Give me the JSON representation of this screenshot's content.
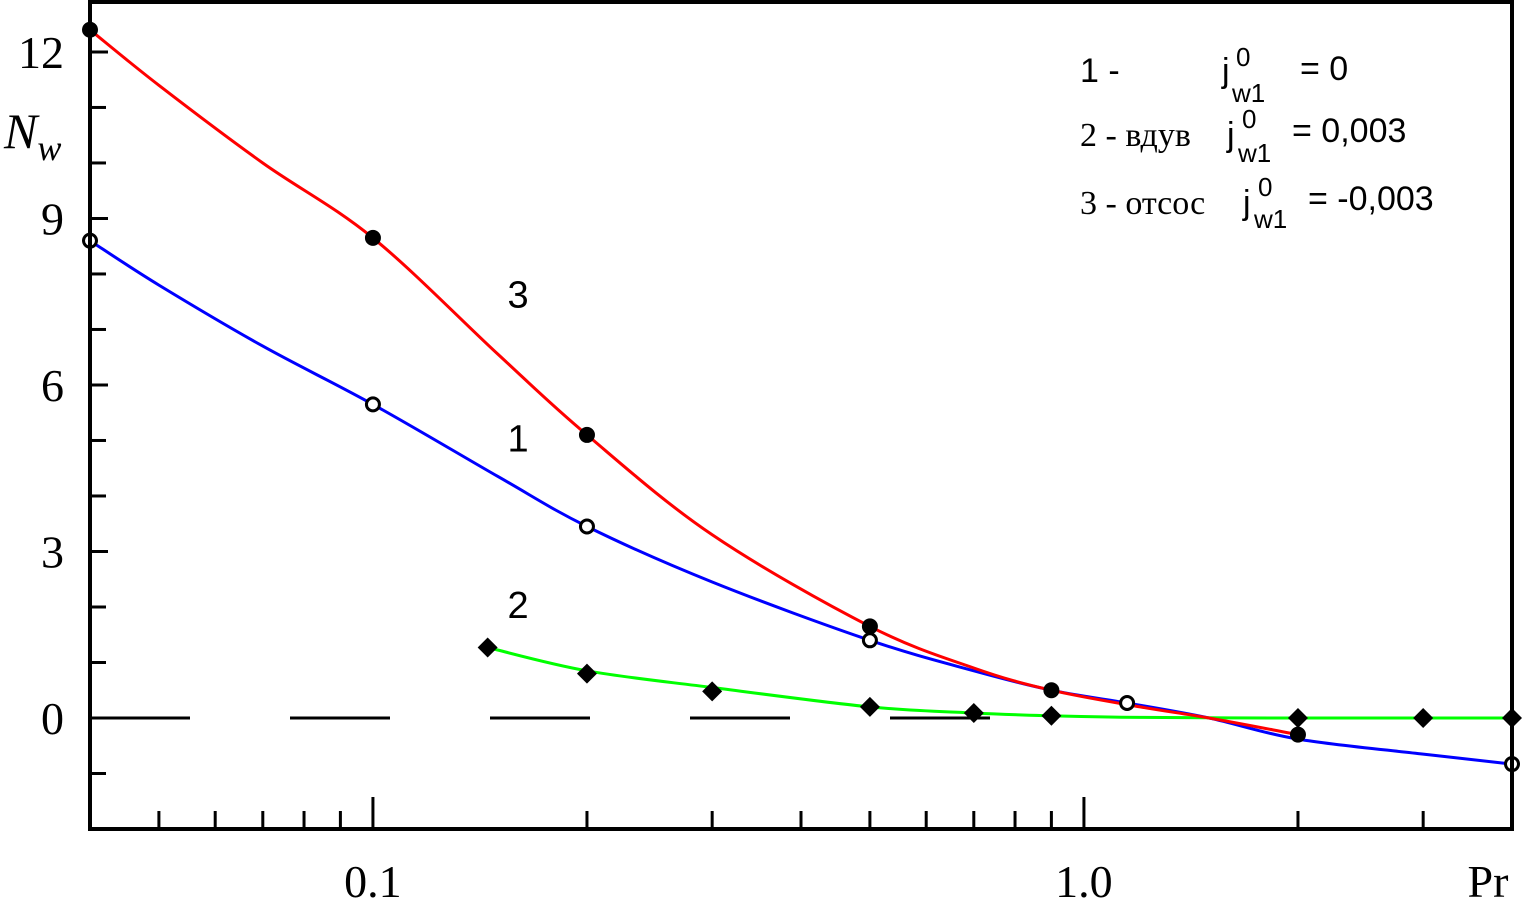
{
  "chart_data": {
    "type": "line",
    "xscale": "log",
    "xlim": [
      0.04,
      4.0
    ],
    "ylim": [
      -2.0,
      12.9
    ],
    "x_tick_labels": [
      "0.1",
      "1.0"
    ],
    "x_tick_values": [
      0.1,
      1.0
    ],
    "x_minor_ticks": [
      0.05,
      0.06,
      0.07,
      0.08,
      0.09,
      0.2,
      0.3,
      0.4,
      0.5,
      0.6,
      0.7,
      0.8,
      0.9,
      2.0,
      3.0,
      4.0
    ],
    "y_tick_labels": [
      "0",
      "3",
      "6",
      "9",
      "12"
    ],
    "y_tick_values": [
      0,
      3,
      6,
      9,
      12
    ],
    "y_minor_ticks": [
      -1,
      1,
      2,
      4,
      5,
      7,
      8,
      10,
      11
    ],
    "xlabel": "Pr",
    "ylabel": {
      "main": "N",
      "sub": "w"
    },
    "zero_line": {
      "y": 0,
      "style": "dashed",
      "x_range": [
        0.04,
        0.9
      ]
    },
    "series": [
      {
        "id": "1",
        "color": "#0000ff",
        "marker": "circle-open",
        "x": [
          0.04,
          0.1,
          0.2,
          0.5,
          1.15,
          4.0
        ],
        "y": [
          8.6,
          5.65,
          3.45,
          1.4,
          0.27,
          -0.83
        ],
        "curve_x": [
          0.04,
          0.05,
          0.07,
          0.1,
          0.15,
          0.2,
          0.3,
          0.5,
          0.7,
          0.9,
          1.15,
          1.5,
          2.0,
          3.0,
          4.0
        ],
        "curve_y": [
          8.6,
          7.8,
          6.7,
          5.65,
          4.35,
          3.45,
          2.45,
          1.4,
          0.85,
          0.5,
          0.27,
          0.0,
          -0.38,
          -0.65,
          -0.83
        ]
      },
      {
        "id": "2",
        "color": "#00ff00",
        "marker": "diamond-filled",
        "x": [
          0.145,
          0.2,
          0.3,
          0.5,
          0.7,
          0.9,
          2.0,
          3.0,
          4.0
        ],
        "y": [
          1.27,
          0.8,
          0.48,
          0.2,
          0.09,
          0.04,
          0.0,
          0.0,
          0.0
        ],
        "curve_x": [
          0.145,
          0.2,
          0.3,
          0.5,
          0.7,
          0.9,
          1.2,
          2.0,
          3.0,
          4.0
        ],
        "curve_y": [
          1.27,
          0.85,
          0.55,
          0.2,
          0.09,
          0.04,
          0.01,
          0.0,
          0.0,
          0.0
        ]
      },
      {
        "id": "3",
        "color": "#ff0000",
        "marker": "circle-filled",
        "x": [
          0.04,
          0.1,
          0.2,
          0.5,
          0.9,
          2.0
        ],
        "y": [
          12.4,
          8.65,
          5.1,
          1.65,
          0.5,
          -0.3
        ],
        "curve_x": [
          0.04,
          0.05,
          0.07,
          0.1,
          0.15,
          0.2,
          0.3,
          0.5,
          0.7,
          0.9,
          1.2,
          1.5,
          2.0
        ],
        "curve_y": [
          12.4,
          11.4,
          10.0,
          8.65,
          6.55,
          5.1,
          3.3,
          1.65,
          0.9,
          0.5,
          0.2,
          0.0,
          -0.3
        ]
      }
    ],
    "curve_labels": [
      {
        "text": "3",
        "series": "3",
        "x": 0.16,
        "y": 7.4
      },
      {
        "text": "1",
        "series": "1",
        "x": 0.16,
        "y": 4.8
      },
      {
        "text": "2",
        "series": "2",
        "x": 0.16,
        "y": 1.8
      }
    ],
    "legend": {
      "placement": "top-right",
      "entries": [
        {
          "prefix": "1 -",
          "prefix_font": "sans",
          "symbol": "j",
          "sup": "0",
          "sub": "w1",
          "value": "= 0"
        },
        {
          "prefix": "2 - вдув",
          "prefix_font": "serif",
          "symbol": "j",
          "sup": "0",
          "sub": "w1",
          "value": "= 0,003"
        },
        {
          "prefix": "3 - отсос",
          "prefix_font": "serif",
          "symbol": "j",
          "sup": "0",
          "sub": "w1",
          "value": "= -0,003"
        }
      ]
    }
  }
}
